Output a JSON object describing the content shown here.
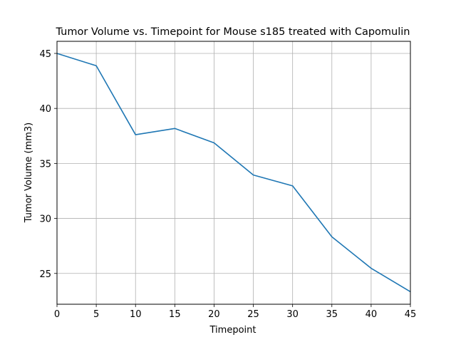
{
  "chart_data": {
    "type": "line",
    "title": "Tumor Volume vs. Timepoint for Mouse s185 treated with Capomulin",
    "xlabel": "Timepoint",
    "ylabel": "Tumor Volume (mm3)",
    "xlim": [
      0,
      45
    ],
    "ylim": [
      22.2,
      46.1
    ],
    "xticks": [
      0,
      5,
      10,
      15,
      20,
      25,
      30,
      35,
      40,
      45
    ],
    "yticks": [
      25,
      30,
      35,
      40,
      45
    ],
    "grid": true,
    "series": [
      {
        "color": "#1f77b4",
        "x": [
          0,
          5,
          10,
          15,
          20,
          25,
          30,
          35,
          40,
          45
        ],
        "y": [
          45.0,
          43.88,
          37.61,
          38.18,
          36.87,
          33.95,
          32.96,
          28.33,
          25.47,
          23.34
        ]
      }
    ]
  }
}
